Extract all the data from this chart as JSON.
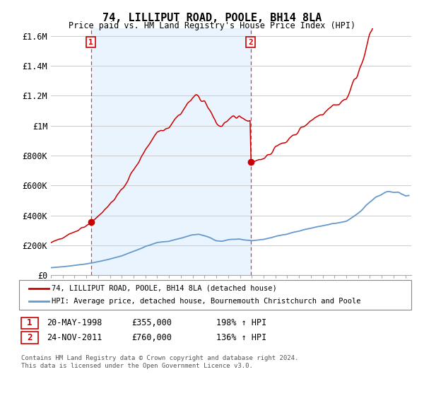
{
  "title": "74, LILLIPUT ROAD, POOLE, BH14 8LA",
  "subtitle": "Price paid vs. HM Land Registry's House Price Index (HPI)",
  "legend_line1": "74, LILLIPUT ROAD, POOLE, BH14 8LA (detached house)",
  "legend_line2": "HPI: Average price, detached house, Bournemouth Christchurch and Poole",
  "annotation1_date": "20-MAY-1998",
  "annotation1_price": "£355,000",
  "annotation1_hpi": "198% ↑ HPI",
  "annotation2_date": "24-NOV-2011",
  "annotation2_price": "£760,000",
  "annotation2_hpi": "136% ↑ HPI",
  "t1": 1998.38,
  "t2": 2011.9,
  "price1": 355000,
  "price2": 760000,
  "red_color": "#cc0000",
  "blue_color": "#6699cc",
  "shade_color": "#ddeeff",
  "footer": "Contains HM Land Registry data © Crown copyright and database right 2024.\nThis data is licensed under the Open Government Licence v3.0.",
  "yticks": [
    0,
    200000,
    400000,
    600000,
    800000,
    1000000,
    1200000,
    1400000,
    1600000
  ],
  "ytick_labels": [
    "£0",
    "£200K",
    "£400K",
    "£600K",
    "£800K",
    "£1M",
    "£1.2M",
    "£1.4M",
    "£1.6M"
  ],
  "xmin": 1995.0,
  "xmax": 2025.5,
  "ymin": 0,
  "ymax": 1650000,
  "background_color": "#ffffff",
  "grid_color": "#cccccc",
  "hpi_control_points": [
    [
      1995.0,
      50000
    ],
    [
      1996.0,
      57000
    ],
    [
      1997.0,
      66000
    ],
    [
      1998.0,
      76000
    ],
    [
      1999.0,
      90000
    ],
    [
      2000.0,
      108000
    ],
    [
      2001.0,
      130000
    ],
    [
      2002.0,
      160000
    ],
    [
      2003.0,
      192000
    ],
    [
      2004.0,
      218000
    ],
    [
      2005.0,
      228000
    ],
    [
      2006.0,
      248000
    ],
    [
      2007.0,
      270000
    ],
    [
      2007.5,
      272000
    ],
    [
      2008.0,
      265000
    ],
    [
      2008.5,
      248000
    ],
    [
      2009.0,
      230000
    ],
    [
      2009.5,
      228000
    ],
    [
      2010.0,
      238000
    ],
    [
      2010.5,
      240000
    ],
    [
      2011.0,
      238000
    ],
    [
      2011.5,
      235000
    ],
    [
      2012.0,
      232000
    ],
    [
      2012.5,
      235000
    ],
    [
      2013.0,
      240000
    ],
    [
      2014.0,
      258000
    ],
    [
      2015.0,
      278000
    ],
    [
      2016.0,
      295000
    ],
    [
      2017.0,
      315000
    ],
    [
      2018.0,
      330000
    ],
    [
      2019.0,
      345000
    ],
    [
      2020.0,
      360000
    ],
    [
      2021.0,
      415000
    ],
    [
      2022.0,
      490000
    ],
    [
      2022.5,
      520000
    ],
    [
      2023.0,
      540000
    ],
    [
      2023.5,
      555000
    ],
    [
      2024.0,
      560000
    ],
    [
      2024.5,
      550000
    ],
    [
      2025.0,
      530000
    ]
  ]
}
